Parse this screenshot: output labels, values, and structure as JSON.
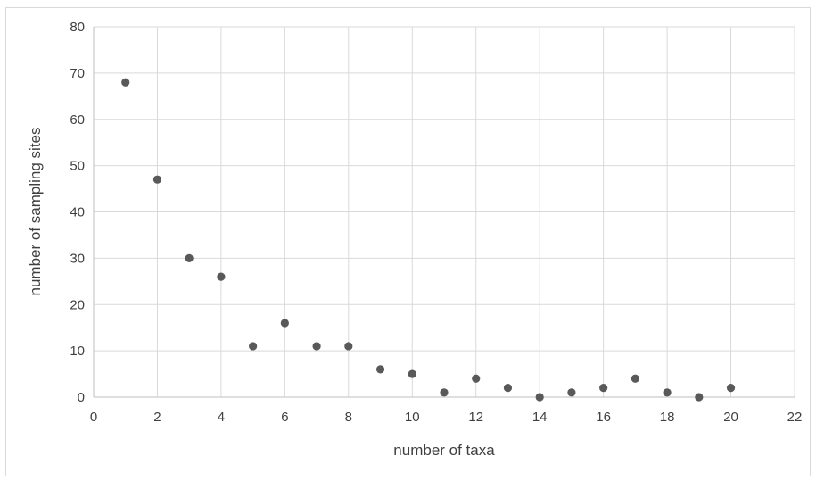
{
  "chart_data": {
    "type": "scatter",
    "xlabel": "number of taxa",
    "ylabel": "number of sampling sites",
    "xlim": [
      0,
      22
    ],
    "ylim": [
      0,
      80
    ],
    "xticks": [
      0,
      2,
      4,
      6,
      8,
      10,
      12,
      14,
      16,
      18,
      20,
      22
    ],
    "yticks": [
      0,
      10,
      20,
      30,
      40,
      50,
      60,
      70,
      80
    ],
    "grid": true,
    "legend": "none",
    "marker_color": "#595959",
    "series": [
      {
        "x": [
          1,
          2,
          3,
          4,
          5,
          6,
          7,
          8,
          9,
          10,
          11,
          12,
          13,
          14,
          15,
          16,
          17,
          18,
          19,
          20
        ],
        "y": [
          68,
          47,
          30,
          26,
          11,
          16,
          11,
          11,
          6,
          5,
          1,
          4,
          2,
          0,
          1,
          2,
          4,
          1,
          0,
          2
        ]
      }
    ]
  }
}
